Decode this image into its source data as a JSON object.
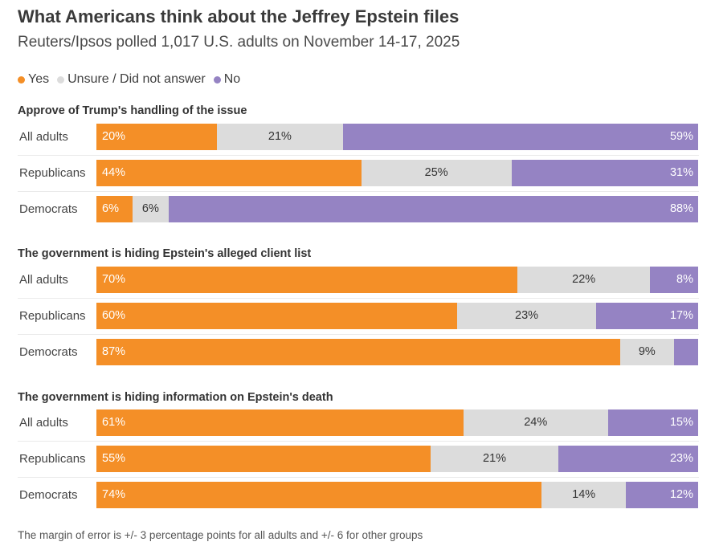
{
  "title": "What Americans think about the Jeffrey Epstein files",
  "subtitle": "Reuters/Ipsos polled 1,017 U.S. adults on November 14-17, 2025",
  "legend": [
    {
      "label": "Yes",
      "color": "#f48f27"
    },
    {
      "label": "Unsure / Did not answer",
      "color": "#dcdcdc"
    },
    {
      "label": "No",
      "color": "#9583c3"
    }
  ],
  "footnote": "The margin of error is +/- 3 percentage points for all adults and +/- 6 for other groups",
  "chart_data": {
    "type": "bar",
    "orientation": "horizontal",
    "stacked": true,
    "title": "What Americans think about the Jeffrey Epstein files",
    "subtitle": "Reuters/Ipsos polled 1,017 U.S. adults on November 14-17, 2025",
    "series_names": [
      "Yes",
      "Unsure / Did not answer",
      "No"
    ],
    "xlim": [
      0,
      100
    ],
    "legend_position": "top-left",
    "groups": [
      {
        "title": "Approve of Trump's handling of the issue",
        "rows": [
          {
            "label": "All adults",
            "values": [
              20,
              21,
              59
            ],
            "labels": [
              "20%",
              "21%",
              "59%"
            ]
          },
          {
            "label": "Republicans",
            "values": [
              44,
              25,
              31
            ],
            "labels": [
              "44%",
              "25%",
              "31%"
            ]
          },
          {
            "label": "Democrats",
            "values": [
              6,
              6,
              88
            ],
            "labels": [
              "6%",
              "6%",
              "88%"
            ]
          }
        ]
      },
      {
        "title": "The government is hiding Epstein's alleged client list",
        "rows": [
          {
            "label": "All adults",
            "values": [
              70,
              22,
              8
            ],
            "labels": [
              "70%",
              "22%",
              "8%"
            ]
          },
          {
            "label": "Republicans",
            "values": [
              60,
              23,
              17
            ],
            "labels": [
              "60%",
              "23%",
              "17%"
            ]
          },
          {
            "label": "Democrats",
            "values": [
              87,
              9,
              4
            ],
            "labels": [
              "87%",
              "9%",
              ""
            ]
          }
        ]
      },
      {
        "title": "The government is hiding information on Epstein's death",
        "rows": [
          {
            "label": "All adults",
            "values": [
              61,
              24,
              15
            ],
            "labels": [
              "61%",
              "24%",
              "15%"
            ]
          },
          {
            "label": "Republicans",
            "values": [
              55,
              21,
              23
            ],
            "labels": [
              "55%",
              "21%",
              "23%"
            ]
          },
          {
            "label": "Democrats",
            "values": [
              74,
              14,
              12
            ],
            "labels": [
              "74%",
              "14%",
              "12%"
            ]
          }
        ]
      }
    ]
  }
}
